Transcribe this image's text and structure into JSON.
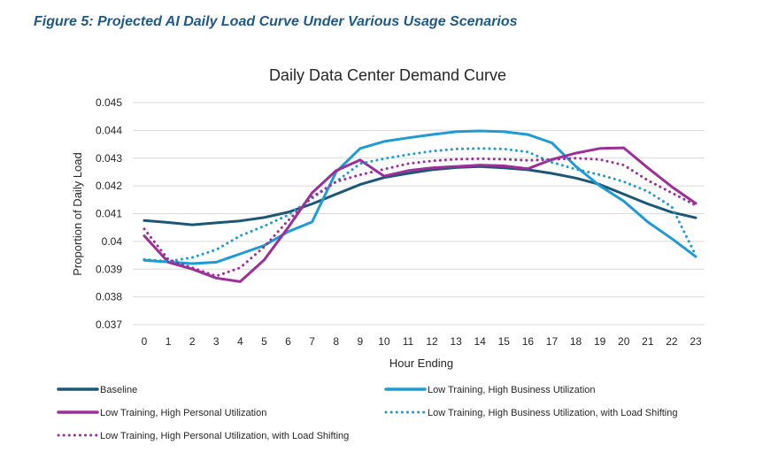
{
  "figure_caption": "Figure 5: Projected AI Daily Load Curve Under Various Usage Scenarios",
  "chart_data": {
    "type": "line",
    "title": "Daily Data Center Demand Curve",
    "xlabel": "Hour Ending",
    "ylabel": "Proportion of Daily Load",
    "x": [
      0,
      1,
      2,
      3,
      4,
      5,
      6,
      7,
      8,
      9,
      10,
      11,
      12,
      13,
      14,
      15,
      16,
      17,
      18,
      19,
      20,
      21,
      22,
      23
    ],
    "ylim": [
      0.037,
      0.045
    ],
    "yticks": [
      "0.037",
      "0.038",
      "0.039",
      "0.04",
      "0.041",
      "0.042",
      "0.043",
      "0.044",
      "0.045"
    ],
    "legend_position": "bottom",
    "grid": true,
    "series": [
      {
        "name": "Baseline",
        "color": "#1d5775",
        "style": "solid",
        "values": [
          0.04075,
          0.04068,
          0.0406,
          0.04067,
          0.04074,
          0.04086,
          0.04105,
          0.04135,
          0.0417,
          0.04205,
          0.0423,
          0.04245,
          0.04258,
          0.04266,
          0.0427,
          0.04265,
          0.04258,
          0.04245,
          0.04228,
          0.04205,
          0.0417,
          0.04135,
          0.04105,
          0.04085
        ]
      },
      {
        "name": "Low Training, High Business Utilization",
        "color": "#1e9bd2",
        "style": "solid",
        "values": [
          0.03932,
          0.03926,
          0.0392,
          0.03925,
          0.03955,
          0.03985,
          0.04035,
          0.0407,
          0.0425,
          0.04335,
          0.0436,
          0.04373,
          0.04385,
          0.04395,
          0.04398,
          0.04395,
          0.04385,
          0.04355,
          0.0427,
          0.042,
          0.04145,
          0.0407,
          0.0401,
          0.03945
        ]
      },
      {
        "name": "Low Training, High Personal Utilization",
        "color": "#9c2f98",
        "style": "solid",
        "values": [
          0.0402,
          0.03925,
          0.039,
          0.03868,
          0.03855,
          0.03933,
          0.0405,
          0.04175,
          0.04255,
          0.04293,
          0.04235,
          0.04255,
          0.04265,
          0.0427,
          0.04275,
          0.04272,
          0.04262,
          0.04295,
          0.04318,
          0.04335,
          0.04337,
          0.04265,
          0.04197,
          0.04137
        ]
      },
      {
        "name": "Low Training, High Business Utilization, with Load Shifting",
        "color": "#1e9bd2",
        "style": "dotted",
        "values": [
          0.03935,
          0.03928,
          0.03942,
          0.0397,
          0.0402,
          0.04055,
          0.04095,
          0.04155,
          0.04215,
          0.0428,
          0.04298,
          0.04313,
          0.04325,
          0.04333,
          0.04335,
          0.04333,
          0.04322,
          0.04285,
          0.0426,
          0.0424,
          0.04215,
          0.0418,
          0.04125,
          0.0395
        ]
      },
      {
        "name": "Low Training, High Personal Utilization, with Load Shifting",
        "color": "#9c2f98",
        "style": "dotted",
        "values": [
          0.04045,
          0.03935,
          0.03905,
          0.03875,
          0.03905,
          0.0398,
          0.04075,
          0.0416,
          0.04215,
          0.0424,
          0.0426,
          0.0428,
          0.0429,
          0.04296,
          0.04298,
          0.04296,
          0.04292,
          0.04295,
          0.043,
          0.04295,
          0.04275,
          0.0422,
          0.04175,
          0.0413
        ]
      }
    ]
  }
}
